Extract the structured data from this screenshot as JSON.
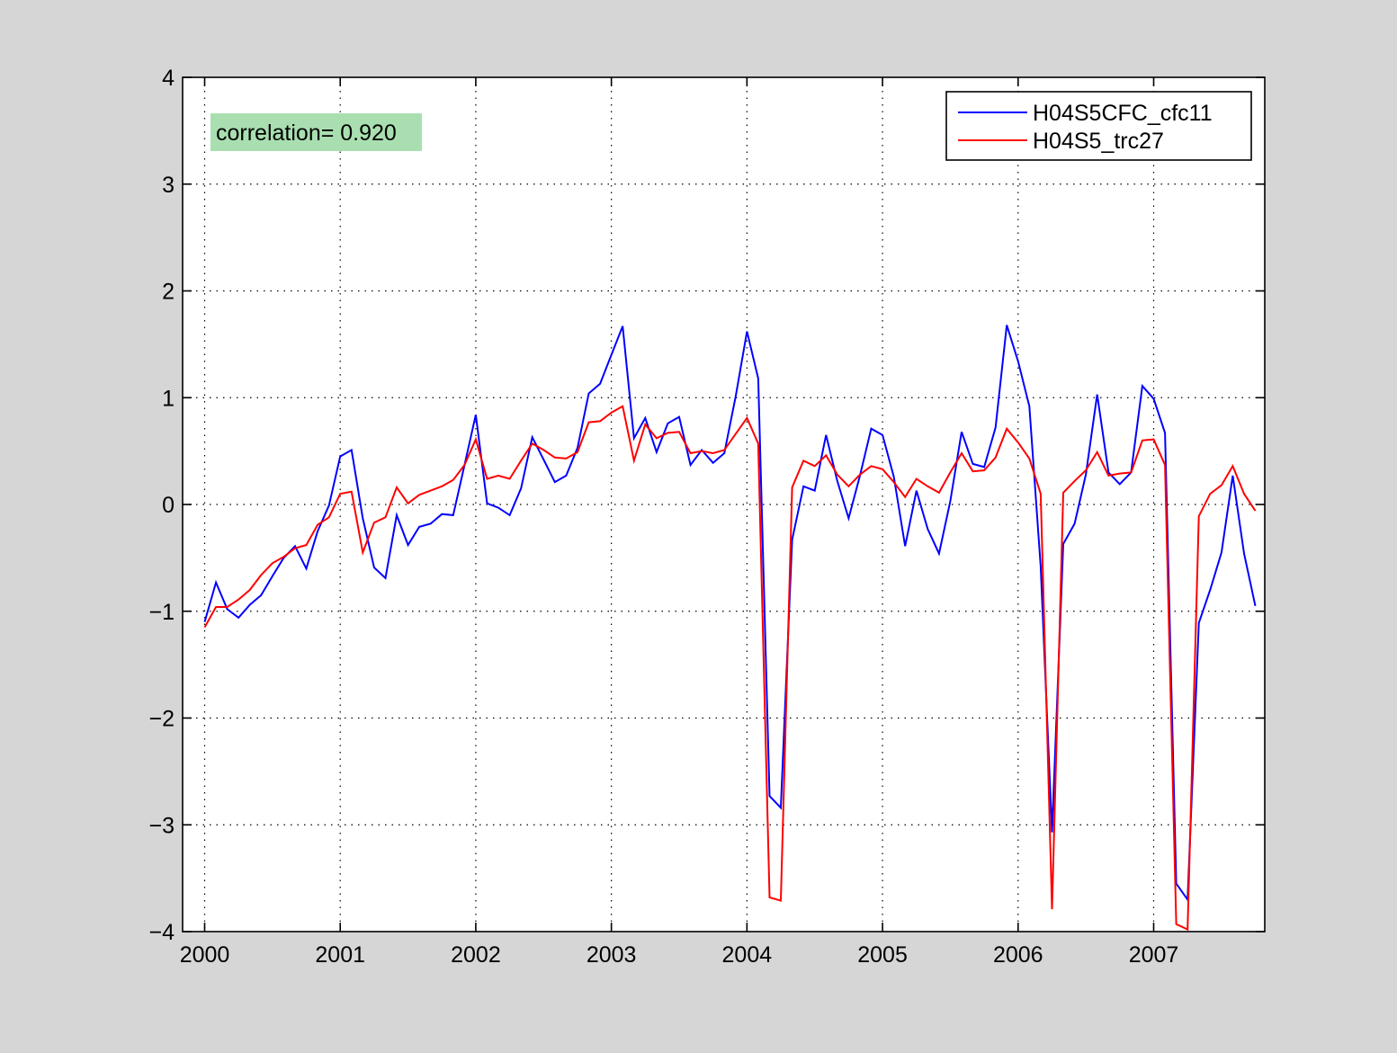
{
  "colors": {
    "figure_background": "#d6d6d6",
    "axes_background": "#ffffff",
    "annotation_background": "#a9dfb0"
  },
  "annotation": {
    "text": "correlation= 0.920"
  },
  "chart_data": {
    "type": "line",
    "title": "",
    "xlabel": "",
    "ylabel": "",
    "xlim": [
      2000,
      2007.85
    ],
    "ylim": [
      -4,
      4
    ],
    "grid": true,
    "legend_position": "top-right",
    "x_ticks": [
      2000,
      2001,
      2002,
      2003,
      2004,
      2005,
      2006,
      2007
    ],
    "x_tick_labels": [
      "2000",
      "2001",
      "2002",
      "2003",
      "2004",
      "2005",
      "2006",
      "2007"
    ],
    "y_ticks": [
      -4,
      -3,
      -2,
      -1,
      0,
      1,
      2,
      3,
      4
    ],
    "y_tick_labels": [
      "−4",
      "−3",
      "−2",
      "−1",
      "0",
      "1",
      "2",
      "3",
      "4"
    ],
    "series": [
      {
        "name": "H04S5CFC_cfc11",
        "color": "#0000ff",
        "values": [
          -1.1,
          -0.73,
          -0.98,
          -1.06,
          -0.94,
          -0.85,
          -0.67,
          -0.5,
          -0.39,
          -0.6,
          -0.25,
          -0.01,
          0.45,
          0.51,
          -0.13,
          -0.59,
          -0.69,
          -0.1,
          -0.38,
          -0.21,
          -0.18,
          -0.09,
          -0.1,
          0.37,
          0.84,
          0.01,
          -0.03,
          -0.1,
          0.15,
          0.63,
          0.42,
          0.21,
          0.27,
          0.53,
          1.04,
          1.13,
          1.4,
          1.67,
          0.62,
          0.81,
          0.49,
          0.76,
          0.82,
          0.37,
          0.51,
          0.39,
          0.48,
          1.01,
          1.62,
          1.18,
          -2.73,
          -2.84,
          -0.33,
          0.17,
          0.13,
          0.65,
          0.22,
          -0.13,
          0.27,
          0.71,
          0.65,
          0.26,
          -0.39,
          0.13,
          -0.23,
          -0.46,
          0.03,
          0.68,
          0.38,
          0.35,
          0.72,
          1.68,
          1.34,
          0.92,
          -0.58,
          -3.07,
          -0.37,
          -0.18,
          0.28,
          1.03,
          0.3,
          0.19,
          0.3,
          1.11,
          0.99,
          0.67,
          -3.55,
          -3.7,
          -1.11,
          -0.8,
          -0.45,
          0.27,
          -0.46,
          -0.95
        ]
      },
      {
        "name": "H04S5_trc27",
        "color": "#ff0000",
        "values": [
          -1.15,
          -0.96,
          -0.96,
          -0.89,
          -0.8,
          -0.66,
          -0.55,
          -0.49,
          -0.41,
          -0.38,
          -0.19,
          -0.12,
          0.1,
          0.12,
          -0.45,
          -0.17,
          -0.12,
          0.16,
          0.01,
          0.09,
          0.13,
          0.17,
          0.23,
          0.37,
          0.61,
          0.24,
          0.27,
          0.24,
          0.41,
          0.57,
          0.51,
          0.44,
          0.43,
          0.49,
          0.77,
          0.78,
          0.86,
          0.92,
          0.41,
          0.75,
          0.62,
          0.67,
          0.68,
          0.48,
          0.5,
          0.48,
          0.51,
          0.66,
          0.81,
          0.57,
          -3.68,
          -3.71,
          0.16,
          0.41,
          0.36,
          0.46,
          0.28,
          0.17,
          0.28,
          0.36,
          0.33,
          0.21,
          0.07,
          0.24,
          0.17,
          0.11,
          0.3,
          0.48,
          0.31,
          0.32,
          0.44,
          0.71,
          0.58,
          0.43,
          0.1,
          -3.79,
          0.11,
          0.22,
          0.32,
          0.49,
          0.27,
          0.29,
          0.3,
          0.6,
          0.61,
          0.37,
          -3.93,
          -3.98,
          -0.11,
          0.1,
          0.18,
          0.36,
          0.1,
          -0.06
        ]
      }
    ]
  }
}
